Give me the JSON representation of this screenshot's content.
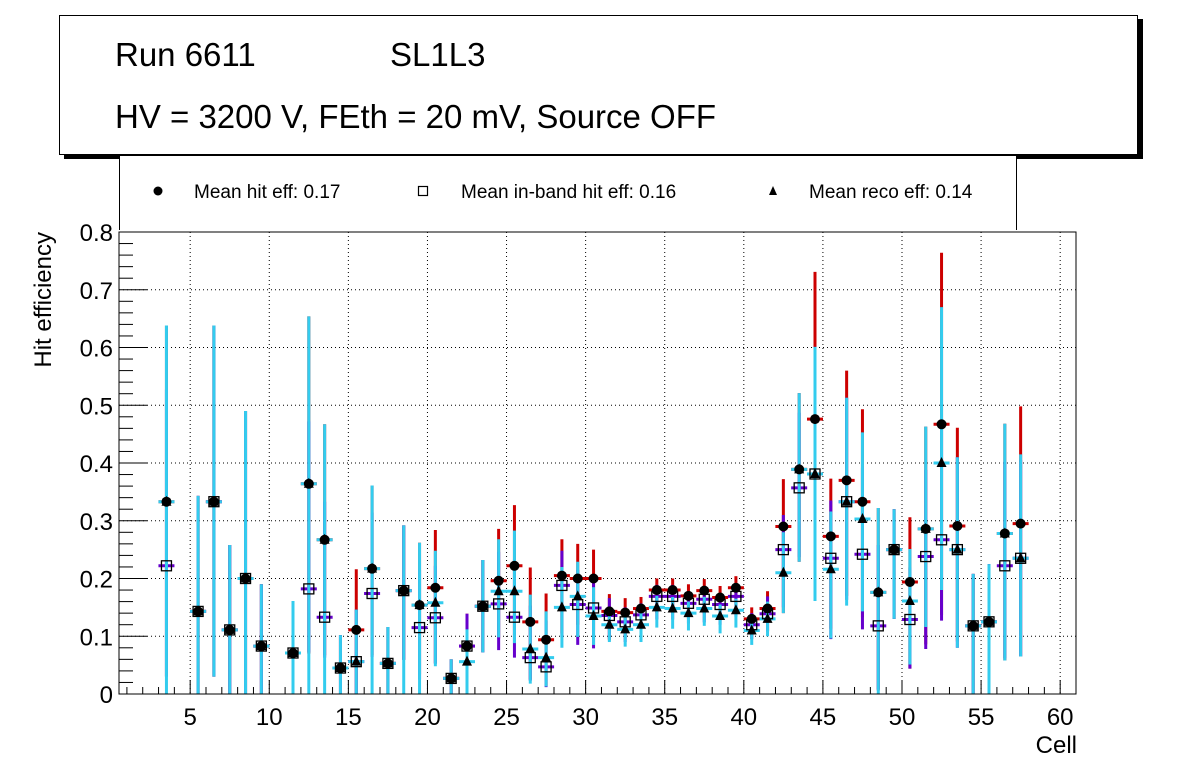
{
  "chart_data": {
    "type": "scatter",
    "title_lines": [
      "Run 6611",
      "SL1L3",
      "HV = 3200 V, FEth = 20 mV, Source OFF"
    ],
    "xlabel": "Cell",
    "ylabel": "Hit efficiency",
    "xlim": [
      0.5,
      61
    ],
    "ylim": [
      0,
      0.8
    ],
    "x_ticks": [
      5,
      10,
      15,
      20,
      25,
      30,
      35,
      40,
      45,
      50,
      55,
      60
    ],
    "y_ticks": [
      0,
      0.1,
      0.2,
      0.3,
      0.4,
      0.5,
      0.6,
      0.7,
      0.8
    ],
    "y_tick_labels": [
      "0",
      "0.1",
      "0.2",
      "0.3",
      "0.4",
      "0.5",
      "0.6",
      "0.7",
      "0.8"
    ],
    "grid": true,
    "legend_position": "top",
    "legend": [
      {
        "marker": "circle",
        "label": "Mean hit  eff: 0.17"
      },
      {
        "marker": "open-square",
        "label": "Mean in-band hit eff: 0.16"
      },
      {
        "marker": "triangle",
        "label": "Mean reco eff: 0.14"
      }
    ],
    "colors": {
      "hit": "#cc0000",
      "inband": "#6600cc",
      "reco": "#33ccee",
      "marker": "#000000"
    },
    "x": [
      3.5,
      5.5,
      6.5,
      7.5,
      8.5,
      9.5,
      11.5,
      12.5,
      13.5,
      14.5,
      15.5,
      16.5,
      17.5,
      18.5,
      19.5,
      20.5,
      21.5,
      22.5,
      23.5,
      24.5,
      25.5,
      26.5,
      27.5,
      28.5,
      29.5,
      30.5,
      31.5,
      32.5,
      33.5,
      34.5,
      35.5,
      36.5,
      37.5,
      38.5,
      39.5,
      40.5,
      41.5,
      42.5,
      43.5,
      44.5,
      45.5,
      46.5,
      47.5,
      48.5,
      49.5,
      50.5,
      51.5,
      52.5,
      53.5,
      54.5,
      55.5,
      56.5,
      57.5
    ],
    "series": [
      {
        "name": "Mean hit eff",
        "values": [
          0.333,
          0.143,
          0.333,
          0.111,
          0.2,
          0.083,
          0.071,
          0.364,
          0.267,
          0.045,
          0.111,
          0.217,
          0.053,
          0.179,
          0.154,
          0.184,
          0.027,
          0.083,
          0.152,
          0.196,
          0.222,
          0.125,
          0.094,
          0.205,
          0.2,
          0.2,
          0.143,
          0.141,
          0.148,
          0.18,
          0.18,
          0.17,
          0.179,
          0.167,
          0.184,
          0.13,
          0.148,
          0.29,
          0.389,
          0.476,
          0.273,
          0.37,
          0.333,
          0.176,
          0.25,
          0.194,
          0.286,
          0.467,
          0.291,
          0.118,
          0.125,
          0.278,
          0.295
        ],
        "err_low": [
          0.303,
          0.143,
          0.303,
          0.111,
          0.2,
          0.083,
          0.071,
          0.294,
          0.2,
          0.045,
          0.111,
          0.15,
          0.053,
          0.12,
          0.12,
          0.13,
          0.027,
          0.06,
          0.08,
          0.1,
          0.12,
          0.1,
          0.08,
          0.1,
          0.08,
          0.09,
          0.05,
          0.04,
          0.04,
          0.04,
          0.04,
          0.04,
          0.04,
          0.04,
          0.04,
          0.03,
          0.04,
          0.15,
          0.16,
          0.31,
          0.16,
          0.2,
          0.2,
          0.17,
          0.12,
          0.15,
          0.2,
          0.33,
          0.2,
          0.118,
          0.125,
          0.22,
          0.23
        ],
        "err_high": [
          0.305,
          0.2,
          0.305,
          0.147,
          0.29,
          0.107,
          0.09,
          0.29,
          0.2,
          0.057,
          0.105,
          0.144,
          0.063,
          0.113,
          0.108,
          0.1,
          0.033,
          0.056,
          0.08,
          0.09,
          0.105,
          0.094,
          0.08,
          0.063,
          0.06,
          0.05,
          0.03,
          0.025,
          0.02,
          0.02,
          0.02,
          0.02,
          0.02,
          0.02,
          0.02,
          0.02,
          0.03,
          0.082,
          0.132,
          0.255,
          0.1,
          0.19,
          0.16,
          0.146,
          0.07,
          0.112,
          0.177,
          0.297,
          0.17,
          0.09,
          0.1,
          0.19,
          0.203
        ]
      },
      {
        "name": "Mean in-band hit eff",
        "values": [
          0.222,
          0.143,
          0.333,
          0.111,
          0.2,
          0.083,
          0.071,
          0.182,
          0.133,
          0.045,
          0.056,
          0.174,
          0.053,
          0.179,
          0.115,
          0.132,
          0.027,
          0.083,
          0.152,
          0.156,
          0.133,
          0.063,
          0.047,
          0.188,
          0.155,
          0.149,
          0.136,
          0.125,
          0.137,
          0.169,
          0.169,
          0.157,
          0.164,
          0.155,
          0.169,
          0.12,
          0.139,
          0.25,
          0.357,
          0.381,
          0.235,
          0.333,
          0.242,
          0.118,
          0.25,
          0.129,
          0.238,
          0.267,
          0.25,
          0.118,
          0.125,
          0.222,
          0.235
        ],
        "err_low": [
          0.192,
          0.143,
          0.303,
          0.111,
          0.2,
          0.083,
          0.071,
          0.11,
          0.07,
          0.045,
          0.056,
          0.11,
          0.053,
          0.12,
          0.09,
          0.08,
          0.027,
          0.05,
          0.08,
          0.08,
          0.07,
          0.04,
          0.035,
          0.09,
          0.07,
          0.07,
          0.04,
          0.035,
          0.035,
          0.04,
          0.04,
          0.035,
          0.04,
          0.035,
          0.035,
          0.025,
          0.03,
          0.1,
          0.12,
          0.22,
          0.14,
          0.17,
          0.13,
          0.11,
          0.12,
          0.085,
          0.16,
          0.14,
          0.17,
          0.118,
          0.125,
          0.16,
          0.17
        ],
        "err_high": [
          0.305,
          0.2,
          0.305,
          0.147,
          0.29,
          0.107,
          0.09,
          0.29,
          0.2,
          0.057,
          0.09,
          0.14,
          0.063,
          0.113,
          0.1,
          0.09,
          0.033,
          0.056,
          0.08,
          0.09,
          0.1,
          0.09,
          0.08,
          0.06,
          0.06,
          0.05,
          0.03,
          0.025,
          0.02,
          0.02,
          0.02,
          0.02,
          0.02,
          0.02,
          0.02,
          0.02,
          0.03,
          0.06,
          0.13,
          0.22,
          0.1,
          0.18,
          0.15,
          0.14,
          0.07,
          0.09,
          0.15,
          0.2,
          0.16,
          0.09,
          0.1,
          0.18,
          0.17
        ]
      },
      {
        "name": "Mean reco eff",
        "values": [
          0.333,
          0.143,
          0.333,
          0.111,
          0.2,
          0.083,
          0.071,
          0.364,
          0.267,
          0.045,
          0.056,
          0.217,
          0.053,
          0.179,
          0.154,
          0.158,
          0.027,
          0.056,
          0.152,
          0.178,
          0.178,
          0.078,
          0.063,
          0.15,
          0.169,
          0.135,
          0.12,
          0.112,
          0.12,
          0.15,
          0.148,
          0.14,
          0.148,
          0.135,
          0.145,
          0.11,
          0.13,
          0.21,
          0.389,
          0.381,
          0.216,
          0.333,
          0.303,
          0.176,
          0.25,
          0.161,
          0.286,
          0.4,
          0.25,
          0.118,
          0.125,
          0.278,
          0.235
        ],
        "err_low": [
          0.333,
          0.143,
          0.303,
          0.111,
          0.2,
          0.083,
          0.071,
          0.364,
          0.267,
          0.045,
          0.056,
          0.217,
          0.053,
          0.179,
          0.154,
          0.11,
          0.027,
          0.056,
          0.08,
          0.08,
          0.09,
          0.06,
          0.05,
          0.07,
          0.07,
          0.05,
          0.03,
          0.03,
          0.03,
          0.035,
          0.035,
          0.03,
          0.03,
          0.03,
          0.03,
          0.025,
          0.03,
          0.07,
          0.16,
          0.22,
          0.12,
          0.18,
          0.16,
          0.176,
          0.12,
          0.11,
          0.17,
          0.22,
          0.17,
          0.118,
          0.125,
          0.22,
          0.17
        ],
        "err_high": [
          0.305,
          0.2,
          0.305,
          0.147,
          0.29,
          0.107,
          0.09,
          0.29,
          0.2,
          0.057,
          0.09,
          0.144,
          0.063,
          0.113,
          0.108,
          0.09,
          0.033,
          0.056,
          0.08,
          0.09,
          0.105,
          0.094,
          0.08,
          0.07,
          0.06,
          0.05,
          0.03,
          0.025,
          0.02,
          0.02,
          0.02,
          0.02,
          0.02,
          0.02,
          0.02,
          0.02,
          0.03,
          0.07,
          0.132,
          0.22,
          0.1,
          0.18,
          0.15,
          0.146,
          0.07,
          0.09,
          0.177,
          0.27,
          0.16,
          0.09,
          0.1,
          0.19,
          0.18
        ]
      }
    ]
  }
}
